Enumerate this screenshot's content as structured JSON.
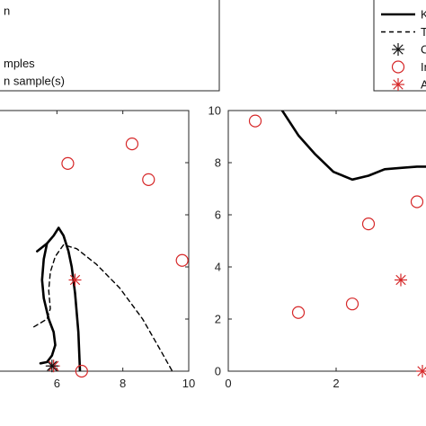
{
  "chart_data": [
    {
      "type": "line",
      "panel": "left",
      "xlim": [
        4,
        10
      ],
      "ylim": [
        0,
        10
      ],
      "xticks": [
        6,
        8,
        10
      ],
      "yticks": [],
      "legend": {
        "placement": "top-left (partially cropped)",
        "entries": [
          {
            "label": "n",
            "style": "solid-black-line"
          },
          {
            "label": "",
            "style": "dashed-black-line"
          },
          {
            "label": "",
            "style": "black-asterisk"
          },
          {
            "label": "mples",
            "style": "red-circle"
          },
          {
            "label": "n sample(s)",
            "style": "red-asterisk"
          }
        ]
      },
      "series": [
        {
          "style": "solid",
          "color": "#000000",
          "x": [
            6.7,
            6.65,
            6.55,
            6.45,
            6.35,
            6.2,
            6.05,
            5.9,
            5.7,
            5.4
          ],
          "y": [
            0.0,
            1.5,
            3.0,
            4.0,
            4.6,
            5.2,
            5.5,
            5.2,
            4.9,
            4.6
          ]
        },
        {
          "style": "solid",
          "color": "#000000",
          "x": [
            5.7,
            5.6,
            5.55,
            5.6,
            5.75,
            5.9,
            5.95,
            5.85,
            5.7,
            5.5
          ],
          "y": [
            4.9,
            4.3,
            3.5,
            2.8,
            2.0,
            1.5,
            1.0,
            0.6,
            0.35,
            0.3
          ]
        },
        {
          "style": "dashed",
          "color": "#000000",
          "x": [
            5.3,
            5.7,
            5.8,
            5.75,
            5.8,
            5.95,
            6.2,
            6.6,
            7.2,
            7.9,
            8.6,
            9.1,
            9.5
          ],
          "y": [
            1.7,
            2.0,
            2.4,
            3.1,
            3.8,
            4.4,
            4.85,
            4.7,
            4.1,
            3.2,
            2.0,
            0.9,
            0.0
          ]
        }
      ],
      "points": [
        {
          "label": "circle",
          "x": [
            6.33,
            8.28,
            8.78,
            9.8,
            6.75
          ],
          "y": [
            7.97,
            8.72,
            7.35,
            4.25,
            0.0
          ]
        },
        {
          "label": "red-asterisk",
          "x": [
            6.55,
            5.9
          ],
          "y": [
            3.5,
            0.2
          ]
        },
        {
          "label": "black-asterisk",
          "x": [
            5.85
          ],
          "y": [
            0.2
          ]
        }
      ]
    },
    {
      "type": "line",
      "panel": "right",
      "xlim": [
        0,
        4
      ],
      "ylim": [
        0,
        10
      ],
      "xticks": [
        0,
        2
      ],
      "yticks": [
        0,
        2,
        4,
        6,
        8,
        10
      ],
      "legend": {
        "placement": "top-right (partially cropped)",
        "entries": [
          {
            "label": "K",
            "style": "solid-black-line"
          },
          {
            "label": "T",
            "style": "dashed-black-line"
          },
          {
            "label": "C",
            "style": "black-asterisk"
          },
          {
            "label": "In",
            "style": "red-circle"
          },
          {
            "label": "A",
            "style": "red-asterisk"
          }
        ]
      },
      "series": [
        {
          "style": "solid",
          "color": "#000000",
          "x": [
            1.0,
            1.3,
            1.6,
            1.95,
            2.3,
            2.6,
            2.9,
            3.2,
            3.5,
            3.75,
            4.05
          ],
          "y": [
            10.0,
            9.05,
            8.35,
            7.65,
            7.35,
            7.5,
            7.75,
            7.8,
            7.85,
            7.85,
            7.8
          ]
        }
      ],
      "points": [
        {
          "label": "circle",
          "x": [
            0.5,
            2.6,
            3.5,
            2.3,
            1.3
          ],
          "y": [
            9.6,
            5.65,
            6.5,
            2.58,
            2.25
          ]
        },
        {
          "label": "red-asterisk",
          "x": [
            3.2,
            3.6
          ],
          "y": [
            3.5,
            0.0
          ]
        }
      ]
    }
  ]
}
